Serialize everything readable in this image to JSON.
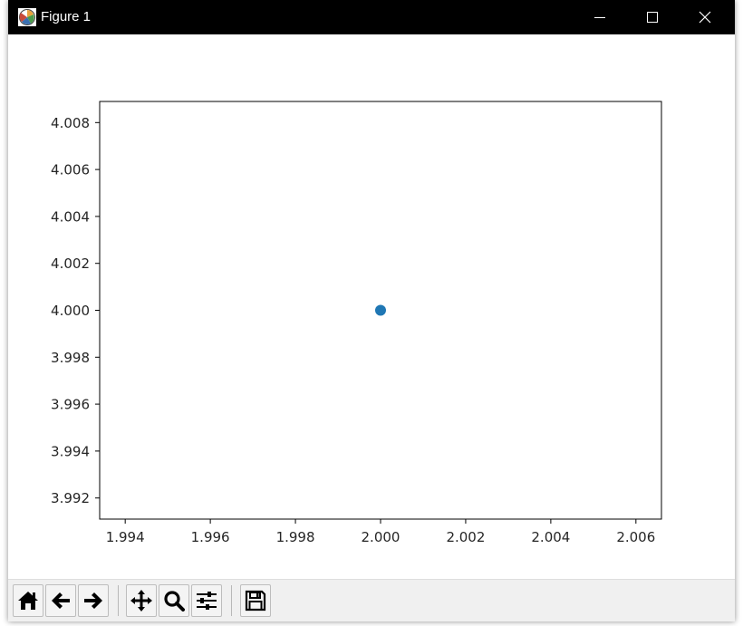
{
  "window": {
    "title": "Figure 1",
    "icon": "matplotlib-icon",
    "controls": [
      "minimize-icon",
      "maximize-icon",
      "close-icon"
    ]
  },
  "toolbar": {
    "buttons": [
      {
        "name": "home-button",
        "icon": "home-icon"
      },
      {
        "name": "back-button",
        "icon": "arrow-left-icon"
      },
      {
        "name": "forward-button",
        "icon": "arrow-right-icon"
      },
      {
        "name": "pan-button",
        "icon": "move-icon"
      },
      {
        "name": "zoom-button",
        "icon": "magnifier-icon"
      },
      {
        "name": "configure-subplots-button",
        "icon": "sliders-icon"
      },
      {
        "name": "save-button",
        "icon": "floppy-disk-icon"
      }
    ]
  },
  "chart_data": {
    "type": "scatter",
    "title": "",
    "xlabel": "",
    "ylabel": "",
    "xlim": [
      1.9934,
      2.0066
    ],
    "ylim": [
      3.9911,
      4.0089
    ],
    "xticks": [
      1.994,
      1.996,
      1.998,
      2.0,
      2.002,
      2.004,
      2.006
    ],
    "xtick_labels": [
      "1.994",
      "1.996",
      "1.998",
      "2.000",
      "2.002",
      "2.004",
      "2.006"
    ],
    "yticks": [
      3.992,
      3.994,
      3.996,
      3.998,
      4.0,
      4.002,
      4.004,
      4.006,
      4.008
    ],
    "ytick_labels": [
      "3.992",
      "3.994",
      "3.996",
      "3.998",
      "4.000",
      "4.002",
      "4.004",
      "4.006",
      "4.008"
    ],
    "grid": false,
    "series": [
      {
        "color": "#1f77b4",
        "points": [
          {
            "x": 2.0,
            "y": 4.0
          }
        ]
      }
    ]
  }
}
